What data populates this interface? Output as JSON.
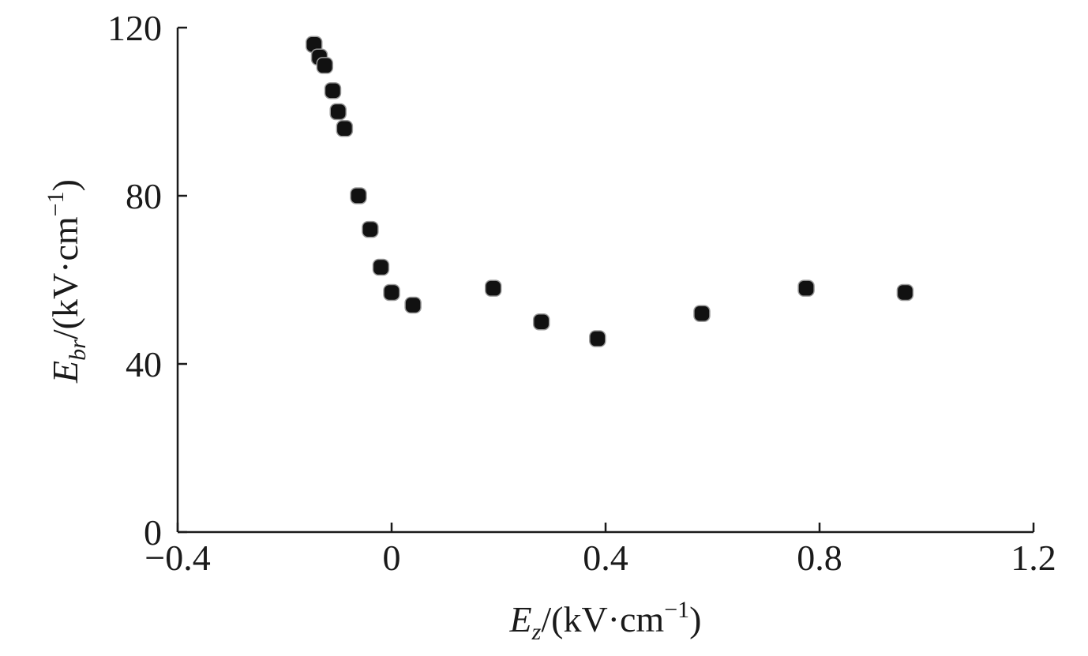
{
  "chart_data": {
    "type": "scatter",
    "title": "",
    "xlabel": {
      "symbol": "E",
      "subscript": "z",
      "unit_prefix": "/(kV·cm",
      "unit_exp": "−1",
      "unit_suffix": ")"
    },
    "ylabel": {
      "symbol": "E",
      "subscript": "br",
      "unit_prefix": "/(kV·cm",
      "unit_exp": "−1",
      "unit_suffix": ")"
    },
    "xlim": [
      -0.4,
      1.2
    ],
    "ylim": [
      0,
      120
    ],
    "x_ticks": [
      -0.4,
      0,
      0.4,
      0.8,
      1.2
    ],
    "x_tick_labels": [
      "−0.4",
      "0",
      "0.4",
      "0.8",
      "1.2"
    ],
    "y_ticks": [
      0,
      40,
      80,
      120
    ],
    "y_tick_labels": [
      "0",
      "40",
      "80",
      "120"
    ],
    "grid": false,
    "marker_color": "#111111",
    "series": [
      {
        "points": [
          {
            "x": -0.145,
            "y": 116
          },
          {
            "x": -0.135,
            "y": 113
          },
          {
            "x": -0.125,
            "y": 111
          },
          {
            "x": -0.11,
            "y": 105
          },
          {
            "x": -0.1,
            "y": 100
          },
          {
            "x": -0.088,
            "y": 96
          },
          {
            "x": -0.062,
            "y": 80
          },
          {
            "x": -0.04,
            "y": 72
          },
          {
            "x": -0.02,
            "y": 63
          },
          {
            "x": 0.0,
            "y": 57
          },
          {
            "x": 0.04,
            "y": 54
          },
          {
            "x": 0.19,
            "y": 58
          },
          {
            "x": 0.28,
            "y": 50
          },
          {
            "x": 0.385,
            "y": 46
          },
          {
            "x": 0.58,
            "y": 52
          },
          {
            "x": 0.775,
            "y": 58
          },
          {
            "x": 0.96,
            "y": 57
          }
        ]
      }
    ]
  }
}
